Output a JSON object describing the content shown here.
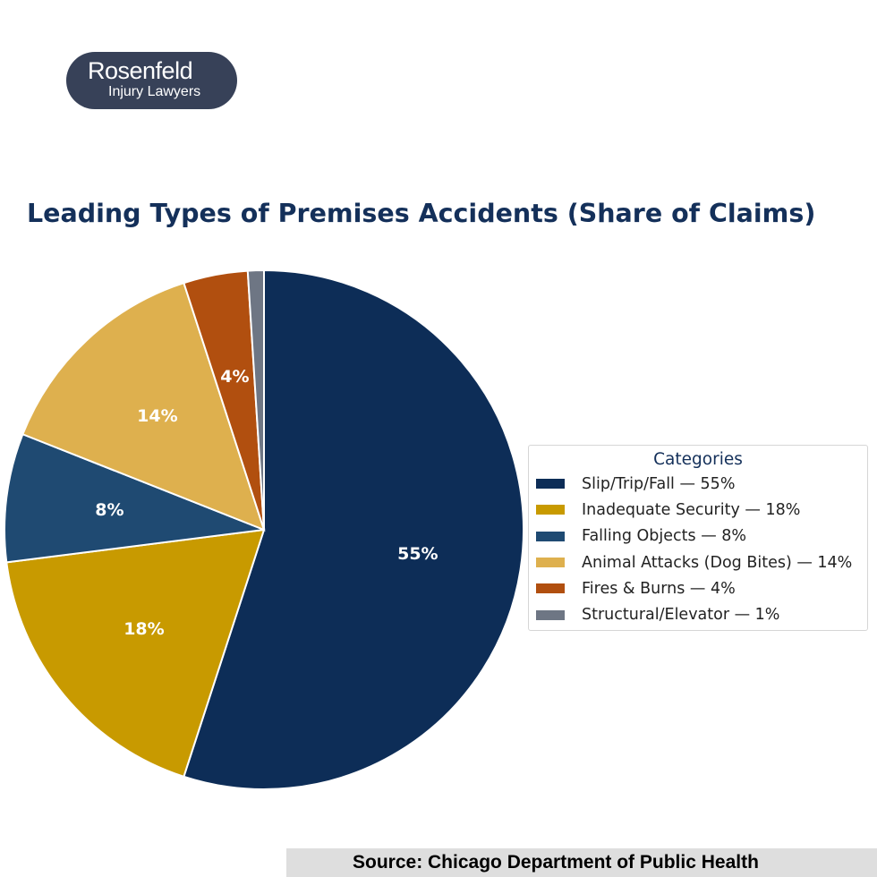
{
  "logo": {
    "name": "Rosenfeld",
    "tagline": "Injury Lawyers"
  },
  "chart_data": {
    "type": "pie",
    "title": "Leading Types of Premises Accidents (Share of Claims)",
    "legend_title": "Categories",
    "legend_position": "right",
    "start_angle_deg": 90,
    "direction": "clockwise",
    "slices": [
      {
        "label": "Slip/Trip/Fall",
        "value": 55,
        "value_label": "55%",
        "legend": "Slip/Trip/Fall — 55%",
        "color": "#0d2d57"
      },
      {
        "label": "Inadequate Security",
        "value": 18,
        "value_label": "18%",
        "legend": "Inadequate Security — 18%",
        "color": "#c89a00"
      },
      {
        "label": "Falling Objects",
        "value": 8,
        "value_label": "8%",
        "legend": "Falling Objects — 8%",
        "color": "#1f4a72"
      },
      {
        "label": "Animal Attacks (Dog Bites)",
        "value": 14,
        "value_label": "14%",
        "legend": "Animal Attacks (Dog Bites) — 14%",
        "color": "#deb04e"
      },
      {
        "label": "Fires & Burns",
        "value": 4,
        "value_label": "4%",
        "legend": "Fires & Burns — 4%",
        "color": "#b14f0f"
      },
      {
        "label": "Structural/Elevator",
        "value": 1,
        "value_label": "",
        "legend": "Structural/Elevator — 1%",
        "color": "#6e7684"
      }
    ]
  },
  "source": {
    "text": "Source: Chicago Department of Public Health"
  }
}
